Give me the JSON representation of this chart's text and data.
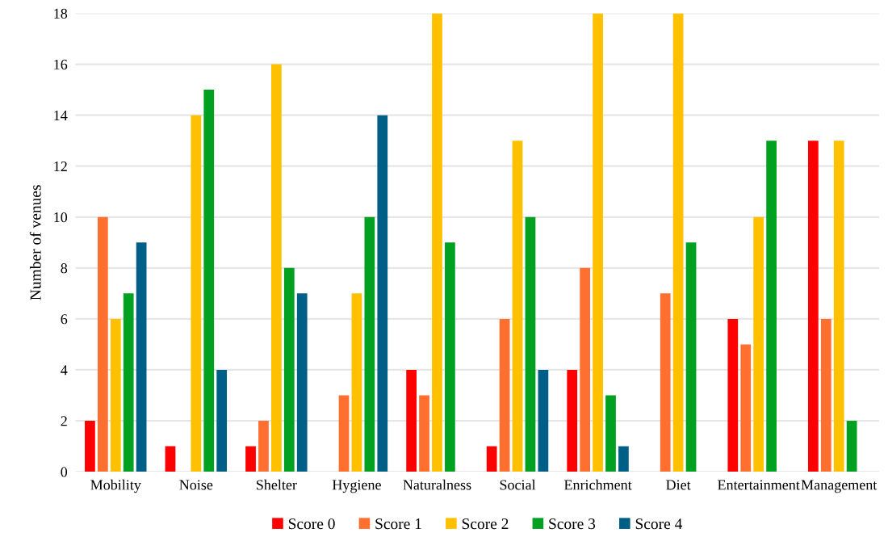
{
  "chart_data": {
    "type": "bar",
    "ylabel": "Number of venues",
    "categories": [
      "Mobility",
      "Noise",
      "Shelter",
      "Hygiene",
      "Naturalness",
      "Social",
      "Enrichment",
      "Diet",
      "Entertainment",
      "Management"
    ],
    "series": [
      {
        "name": "Score 0",
        "color": "#ff0000",
        "values": [
          2,
          1,
          1,
          0,
          4,
          1,
          4,
          0,
          6,
          13
        ]
      },
      {
        "name": "Score 1",
        "color": "#ff7030",
        "values": [
          10,
          0,
          2,
          3,
          3,
          6,
          8,
          7,
          5,
          6
        ]
      },
      {
        "name": "Score 2",
        "color": "#ffc000",
        "values": [
          6,
          14,
          16,
          7,
          18,
          13,
          18,
          18,
          10,
          13
        ]
      },
      {
        "name": "Score 3",
        "color": "#00a020",
        "values": [
          7,
          15,
          8,
          10,
          9,
          10,
          3,
          9,
          13,
          2
        ]
      },
      {
        "name": "Score 4",
        "color": "#005f87",
        "values": [
          9,
          4,
          7,
          14,
          0,
          4,
          1,
          0,
          0,
          0
        ]
      }
    ],
    "ylim": [
      0,
      18
    ],
    "yticks": [
      0,
      2,
      4,
      6,
      8,
      10,
      12,
      14,
      16,
      18
    ],
    "grid": "y",
    "legend": "bottom"
  }
}
